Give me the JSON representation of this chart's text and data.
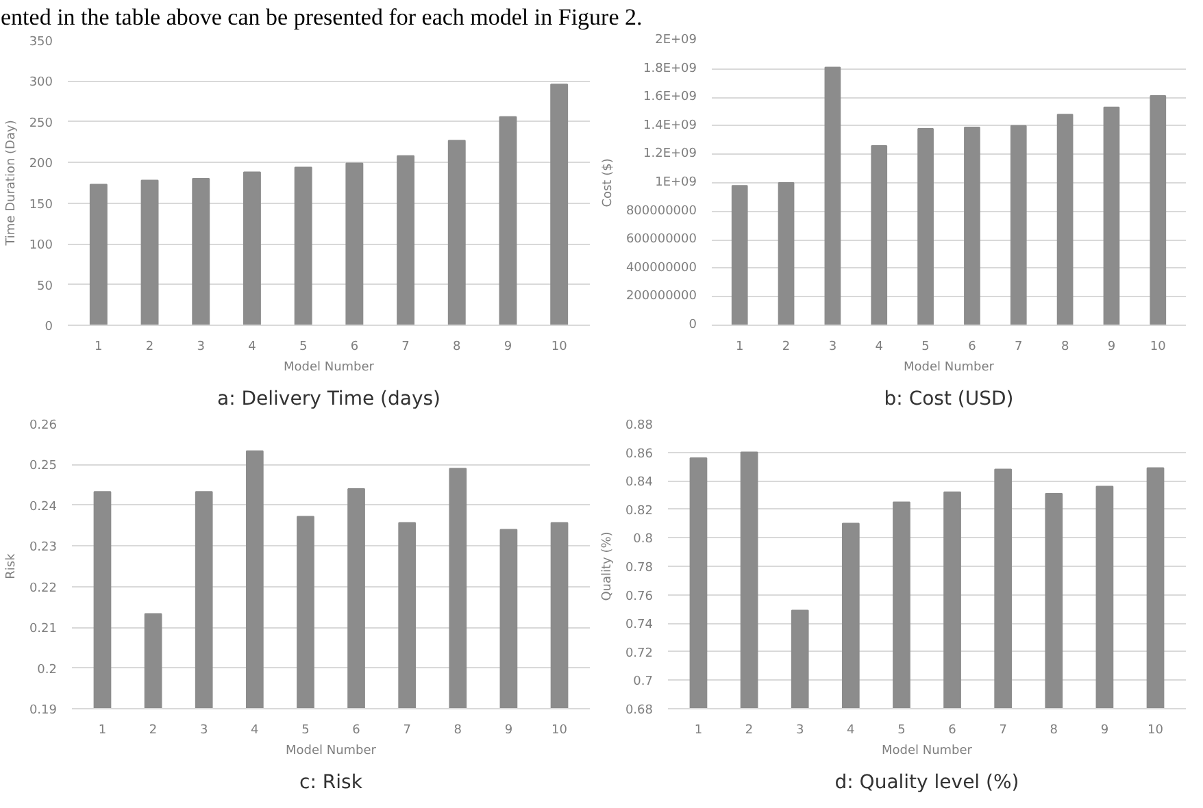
{
  "chart_data": [
    {
      "type": "other",
      "annotations": [
        "ented in the table above can be presented for each model in Figure 2."
      ]
    },
    {
      "type": "bar",
      "title": "a: Delivery Time (days)",
      "xlabel": "Model Number",
      "ylabel": "Time Duration (Day)",
      "categories": [
        "1",
        "2",
        "3",
        "4",
        "5",
        "6",
        "7",
        "8",
        "9",
        "10"
      ],
      "values": [
        173,
        178,
        180,
        188,
        194,
        199,
        208,
        227,
        256,
        296
      ],
      "color": "#8c8c8c",
      "ylim": [
        0,
        350
      ],
      "yticks": [
        0,
        50,
        100,
        150,
        200,
        250,
        300,
        350
      ],
      "grid": "y"
    },
    {
      "type": "bar",
      "title": "b: Cost (USD)",
      "xlabel": "Model Number",
      "ylabel": "Cost ($)",
      "categories": [
        "1",
        "2",
        "3",
        "4",
        "5",
        "6",
        "7",
        "8",
        "9",
        "10"
      ],
      "values": [
        980000000,
        1000000000,
        1810000000,
        1260000000,
        1380000000,
        1390000000,
        1400000000,
        1480000000,
        1530000000,
        1610000000
      ],
      "color": "#8c8c8c",
      "ylim": [
        0,
        2000000000
      ],
      "yticks": [
        0,
        200000000,
        400000000,
        600000000,
        800000000,
        {
          "value": 1000000000,
          "label": "1E+09"
        },
        {
          "value": 1200000000,
          "label": "1.2E+09"
        },
        {
          "value": 1400000000,
          "label": "1.4E+09"
        },
        {
          "value": 1600000000,
          "label": "1.6E+09"
        },
        {
          "value": 1800000000,
          "label": "1.8E+09"
        },
        {
          "value": 2000000000,
          "label": "2E+09"
        }
      ],
      "grid": "y"
    },
    {
      "type": "bar",
      "title": "c: Risk",
      "xlabel": "Model Number",
      "ylabel": "Risk",
      "categories": [
        "1",
        "2",
        "3",
        "4",
        "5",
        "6",
        "7",
        "8",
        "9",
        "10"
      ],
      "values": [
        0.2433,
        0.2133,
        0.2433,
        0.2533,
        0.2372,
        0.244,
        0.2357,
        0.249,
        0.234,
        0.2357
      ],
      "color": "#8c8c8c",
      "ylim": [
        0.19,
        0.26
      ],
      "yticks": [
        0.19,
        0.2,
        0.21,
        0.22,
        0.23,
        0.24,
        0.25,
        0.26
      ],
      "grid": "y"
    },
    {
      "type": "bar",
      "title": "d: Quality level (%)",
      "xlabel": "Model Number",
      "ylabel": "Quality (%)",
      "categories": [
        "1",
        "2",
        "3",
        "4",
        "5",
        "6",
        "7",
        "8",
        "9",
        "10"
      ],
      "values": [
        0.856,
        0.86,
        0.749,
        0.81,
        0.825,
        0.832,
        0.848,
        0.831,
        0.836,
        0.849
      ],
      "color": "#8c8c8c",
      "ylim": [
        0.68,
        0.88
      ],
      "yticks": [
        0.68,
        0.7,
        0.72,
        0.74,
        0.76,
        0.78,
        0.8,
        0.82,
        0.84,
        0.86,
        0.88
      ],
      "grid": "y"
    }
  ]
}
